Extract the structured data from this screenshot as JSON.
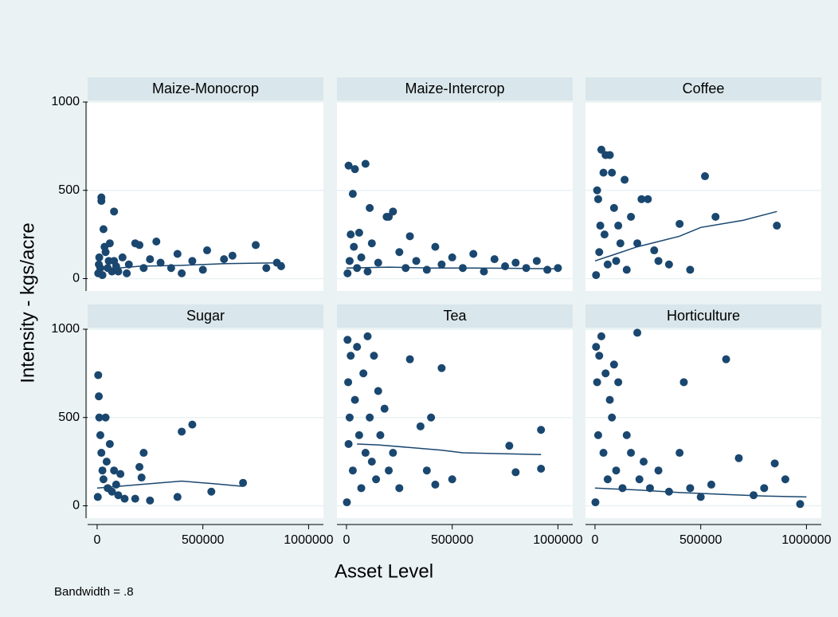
{
  "chart_data": {
    "type": "scatter",
    "xlabel": "Asset Level",
    "ylabel": "Intensity - kgs/acre",
    "note": "Bandwidth = .8",
    "xlim": [
      -45000,
      1070000
    ],
    "ylim": [
      -70,
      1000
    ],
    "xticks": [
      0,
      500000,
      1000000
    ],
    "yticks": [
      0,
      500,
      1000
    ],
    "grid": true,
    "marker_color": "#1a476f",
    "line_color": "#1a476f",
    "facets": [
      {
        "title": "Maize-Monocrop",
        "x": [
          5000,
          8000,
          10000,
          15000,
          20000,
          20000,
          25000,
          30000,
          35000,
          40000,
          50000,
          55000,
          60000,
          70000,
          80000,
          80000,
          90000,
          100000,
          120000,
          140000,
          150000,
          180000,
          200000,
          220000,
          250000,
          280000,
          300000,
          350000,
          380000,
          400000,
          450000,
          500000,
          520000,
          600000,
          640000,
          750000,
          800000,
          850000,
          870000
        ],
        "y": [
          30,
          80,
          120,
          60,
          460,
          440,
          20,
          280,
          180,
          150,
          60,
          100,
          200,
          40,
          380,
          100,
          70,
          40,
          120,
          30,
          80,
          200,
          190,
          60,
          110,
          210,
          90,
          60,
          140,
          30,
          100,
          50,
          160,
          110,
          130,
          190,
          60,
          90,
          70
        ],
        "lowess_x": [
          0,
          100000,
          200000,
          400000,
          600000,
          880000
        ],
        "lowess_y": [
          50,
          60,
          70,
          75,
          85,
          90
        ]
      },
      {
        "title": "Maize-Intercrop",
        "x": [
          5000,
          10000,
          15000,
          20000,
          30000,
          35000,
          40000,
          50000,
          60000,
          70000,
          90000,
          100000,
          110000,
          120000,
          150000,
          190000,
          200000,
          220000,
          250000,
          280000,
          300000,
          330000,
          380000,
          420000,
          450000,
          500000,
          550000,
          600000,
          650000,
          700000,
          750000,
          800000,
          850000,
          900000,
          950000,
          1000000
        ],
        "y": [
          30,
          640,
          100,
          250,
          480,
          180,
          620,
          60,
          260,
          120,
          650,
          40,
          400,
          200,
          90,
          350,
          350,
          380,
          150,
          60,
          240,
          100,
          50,
          180,
          80,
          120,
          60,
          140,
          40,
          110,
          70,
          90,
          60,
          100,
          50,
          60
        ],
        "lowess_x": [
          0,
          200000,
          400000,
          600000,
          800000,
          1000000
        ],
        "lowess_y": [
          60,
          65,
          60,
          60,
          58,
          55
        ]
      },
      {
        "title": "Coffee",
        "x": [
          5000,
          10000,
          15000,
          20000,
          25000,
          30000,
          40000,
          45000,
          50000,
          60000,
          70000,
          80000,
          90000,
          100000,
          110000,
          120000,
          140000,
          150000,
          170000,
          200000,
          220000,
          250000,
          280000,
          300000,
          350000,
          400000,
          450000,
          520000,
          570000,
          860000
        ],
        "y": [
          20,
          500,
          450,
          150,
          300,
          730,
          600,
          250,
          700,
          80,
          700,
          600,
          400,
          100,
          300,
          200,
          560,
          50,
          350,
          200,
          450,
          450,
          160,
          100,
          80,
          310,
          50,
          580,
          350,
          300
        ],
        "lowess_x": [
          0,
          100000,
          200000,
          300000,
          400000,
          500000,
          700000,
          860000
        ],
        "lowess_y": [
          100,
          140,
          180,
          210,
          240,
          290,
          330,
          380
        ]
      },
      {
        "title": "Sugar",
        "x": [
          3000,
          5000,
          8000,
          10000,
          15000,
          20000,
          25000,
          30000,
          40000,
          45000,
          50000,
          60000,
          70000,
          80000,
          90000,
          100000,
          110000,
          130000,
          180000,
          200000,
          210000,
          220000,
          250000,
          380000,
          400000,
          450000,
          540000,
          690000
        ],
        "y": [
          50,
          740,
          620,
          500,
          400,
          300,
          200,
          150,
          500,
          250,
          100,
          350,
          80,
          200,
          120,
          60,
          180,
          40,
          40,
          220,
          160,
          300,
          30,
          50,
          420,
          460,
          80,
          130
        ],
        "lowess_x": [
          0,
          100000,
          200000,
          400000,
          550000,
          690000
        ],
        "lowess_y": [
          100,
          110,
          120,
          140,
          125,
          110
        ]
      },
      {
        "title": "Tea",
        "x": [
          2000,
          5000,
          8000,
          10000,
          15000,
          20000,
          30000,
          40000,
          50000,
          60000,
          70000,
          80000,
          90000,
          100000,
          110000,
          120000,
          130000,
          140000,
          150000,
          160000,
          180000,
          200000,
          220000,
          250000,
          300000,
          350000,
          380000,
          400000,
          420000,
          450000,
          500000,
          770000,
          800000,
          920000,
          920000
        ],
        "y": [
          20,
          940,
          700,
          350,
          500,
          850,
          200,
          600,
          900,
          400,
          100,
          750,
          300,
          960,
          500,
          250,
          850,
          150,
          650,
          400,
          550,
          200,
          300,
          100,
          830,
          450,
          200,
          500,
          120,
          780,
          150,
          340,
          190,
          430,
          210
        ],
        "lowess_x": [
          50000,
          150000,
          300000,
          450000,
          550000,
          750000,
          920000
        ],
        "lowess_y": [
          350,
          345,
          330,
          315,
          300,
          295,
          290
        ]
      },
      {
        "title": "Horticulture",
        "x": [
          2000,
          5000,
          10000,
          15000,
          20000,
          30000,
          40000,
          50000,
          60000,
          70000,
          80000,
          90000,
          100000,
          110000,
          130000,
          150000,
          170000,
          200000,
          210000,
          230000,
          260000,
          300000,
          350000,
          400000,
          420000,
          450000,
          500000,
          550000,
          620000,
          680000,
          750000,
          800000,
          850000,
          900000,
          970000
        ],
        "y": [
          20,
          900,
          700,
          400,
          850,
          960,
          300,
          750,
          150,
          600,
          500,
          800,
          200,
          700,
          100,
          400,
          300,
          980,
          150,
          250,
          100,
          200,
          80,
          300,
          700,
          100,
          50,
          120,
          830,
          270,
          60,
          100,
          240,
          150,
          10
        ],
        "lowess_x": [
          0,
          200000,
          400000,
          600000,
          800000,
          1000000
        ],
        "lowess_y": [
          100,
          90,
          75,
          65,
          55,
          50
        ]
      }
    ]
  }
}
